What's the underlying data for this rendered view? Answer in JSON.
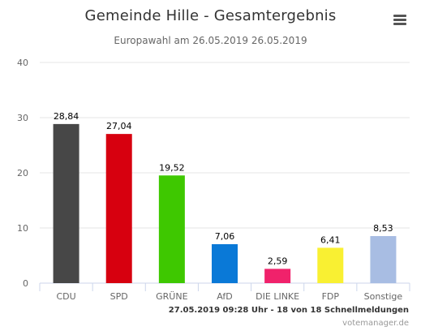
{
  "title": "Gemeinde Hille - Gesamtergebnis",
  "subtitle": "Europawahl am 26.05.2019 26.05.2019",
  "menu_icon": "hamburger-menu-icon",
  "timestamp_line": "27.05.2019 09:28 Uhr - 18 von 18 Schnellmeldungen",
  "credits": "votemanager.de",
  "chart_data": {
    "type": "bar",
    "categories": [
      "CDU",
      "SPD",
      "GRÜNE",
      "AfD",
      "DIE LINKE",
      "FDP",
      "Sonstige"
    ],
    "values": [
      28.84,
      27.04,
      19.52,
      7.06,
      2.59,
      6.41,
      8.53
    ],
    "value_labels": [
      "28,84",
      "27,04",
      "19,52",
      "7,06",
      "2,59",
      "6,41",
      "8,53"
    ],
    "colors": [
      "#474747",
      "#d7000f",
      "#3ec800",
      "#0a79d7",
      "#f0226b",
      "#f9f032",
      "#a8bde3"
    ],
    "ylim": [
      0,
      40
    ],
    "yticks": [
      "0",
      "10",
      "20",
      "30",
      "40"
    ],
    "grid": true,
    "legend": "none"
  }
}
